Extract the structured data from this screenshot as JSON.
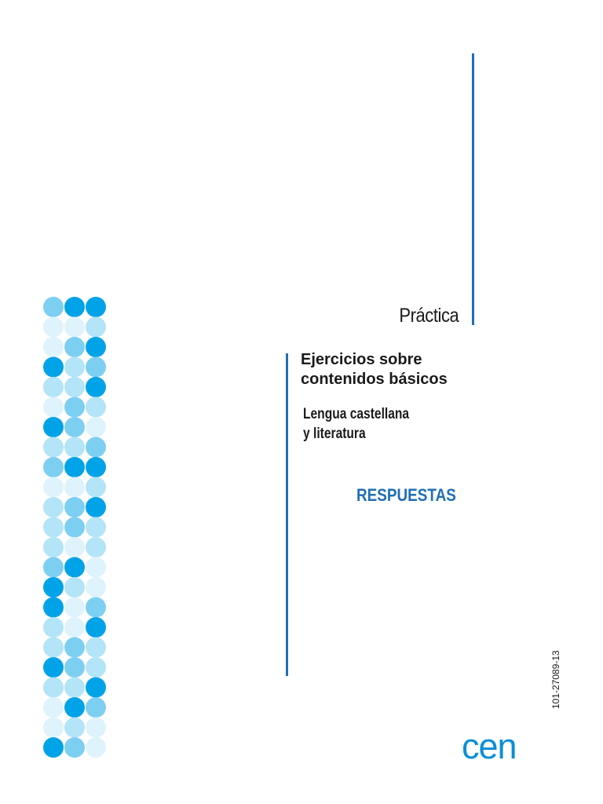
{
  "cover": {
    "series_title": "Práctica",
    "book_title_line1": "Ejercicios sobre",
    "book_title_line2": "contenidos básicos",
    "subject_line1": "Lengua castellana",
    "subject_line2": "y literatura",
    "answers_label": "RESPUESTAS",
    "publisher_logo": "cen",
    "isbn_code": "101-27089-13"
  },
  "colors": {
    "accent_line": "#1f6fb5",
    "answers_text": "#1f6fb5",
    "logo": "#0b8fd6",
    "dot_shades": [
      "#00a3e8",
      "#7dcff2",
      "#b3e4f8",
      "#dff3fc"
    ]
  },
  "dot_pattern": {
    "columns": 3,
    "rows": [
      [
        1,
        0,
        0
      ],
      [
        3,
        3,
        2
      ],
      [
        3,
        1,
        0
      ],
      [
        0,
        2,
        1
      ],
      [
        2,
        2,
        0
      ],
      [
        3,
        1,
        2
      ],
      [
        0,
        1,
        3
      ],
      [
        2,
        2,
        1
      ],
      [
        1,
        0,
        0
      ],
      [
        3,
        3,
        2
      ],
      [
        2,
        1,
        0
      ],
      [
        2,
        1,
        2
      ],
      [
        2,
        3,
        2
      ],
      [
        1,
        0,
        3
      ],
      [
        0,
        2,
        3
      ],
      [
        0,
        3,
        1
      ],
      [
        2,
        3,
        0
      ],
      [
        2,
        1,
        2
      ],
      [
        0,
        1,
        2
      ],
      [
        2,
        2,
        0
      ],
      [
        3,
        0,
        1
      ],
      [
        3,
        2,
        3
      ],
      [
        0,
        1,
        3
      ]
    ]
  }
}
